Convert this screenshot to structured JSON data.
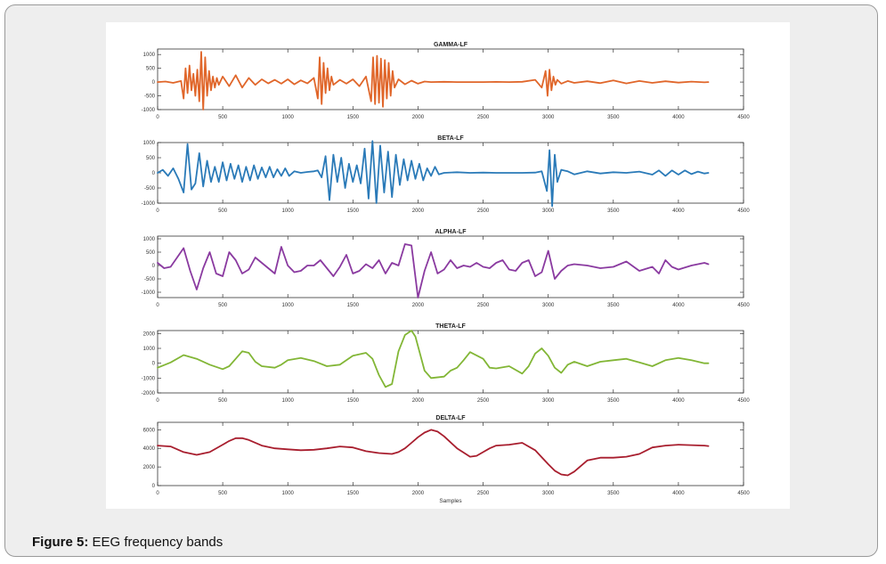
{
  "caption": {
    "label": "Figure 5:",
    "text": "EEG frequency bands"
  },
  "chart_data": [
    {
      "type": "line",
      "title": "GAMMA-LF",
      "xlabel": "",
      "xlim": [
        0,
        4500
      ],
      "ylim": [
        -1000,
        1200
      ],
      "xticks": [
        "0",
        "500",
        "1000",
        "1500",
        "2000",
        "2500",
        "3000",
        "3500",
        "4000",
        "4500"
      ],
      "yticks": [
        "1000",
        "500",
        "0",
        "-500",
        "-1000"
      ],
      "color": "#e0662a",
      "series": [
        {
          "x": [
            0,
            60,
            120,
            180,
            200,
            215,
            230,
            245,
            260,
            275,
            290,
            305,
            320,
            335,
            350,
            365,
            380,
            395,
            410,
            425,
            440,
            455,
            470,
            500,
            550,
            600,
            650,
            700,
            750,
            800,
            850,
            900,
            950,
            1000,
            1050,
            1100,
            1150,
            1200,
            1230,
            1245,
            1260,
            1275,
            1290,
            1305,
            1320,
            1335,
            1350,
            1400,
            1450,
            1500,
            1550,
            1600,
            1640,
            1655,
            1670,
            1685,
            1700,
            1715,
            1730,
            1745,
            1760,
            1775,
            1790,
            1805,
            1820,
            1850,
            1900,
            1950,
            2000,
            2050,
            2100,
            2200,
            2300,
            2400,
            2500,
            2600,
            2700,
            2800,
            2900,
            2950,
            2980,
            2995,
            3010,
            3025,
            3040,
            3055,
            3070,
            3100,
            3150,
            3200,
            3300,
            3400,
            3500,
            3600,
            3700,
            3800,
            3900,
            4000,
            4100,
            4200,
            4230
          ],
          "y": [
            0,
            20,
            -30,
            40,
            -600,
            500,
            -400,
            600,
            -300,
            300,
            -500,
            450,
            -700,
            1100,
            -1000,
            900,
            -500,
            400,
            -300,
            200,
            -200,
            150,
            -100,
            200,
            -150,
            250,
            -200,
            150,
            -100,
            100,
            -50,
            80,
            -60,
            100,
            -80,
            60,
            -50,
            150,
            -600,
            900,
            -800,
            700,
            -400,
            500,
            -300,
            200,
            -100,
            80,
            -60,
            100,
            -150,
            200,
            -700,
            900,
            -800,
            950,
            -750,
            850,
            -900,
            800,
            -600,
            700,
            -500,
            400,
            -200,
            100,
            -80,
            50,
            -60,
            20,
            0,
            10,
            0,
            0,
            0,
            5,
            0,
            10,
            80,
            -200,
            400,
            -500,
            450,
            -300,
            200,
            -100,
            80,
            -60,
            40,
            -30,
            30,
            -40,
            60,
            -50,
            40,
            -30,
            30,
            -20,
            15,
            -10,
            0
          ]
        }
      ]
    },
    {
      "type": "line",
      "title": "BETA-LF",
      "xlabel": "",
      "xlim": [
        0,
        4500
      ],
      "ylim": [
        -1000,
        1000
      ],
      "xticks": [
        "0",
        "500",
        "1000",
        "1500",
        "2000",
        "2500",
        "3000",
        "3500",
        "4000",
        "4500"
      ],
      "yticks": [
        "1000",
        "500",
        "0",
        "-500",
        "-1000"
      ],
      "color": "#2a7ab8",
      "series": [
        {
          "x": [
            0,
            40,
            80,
            120,
            160,
            200,
            230,
            260,
            290,
            320,
            350,
            380,
            410,
            440,
            470,
            500,
            530,
            560,
            590,
            620,
            650,
            680,
            710,
            740,
            770,
            800,
            830,
            860,
            890,
            920,
            950,
            980,
            1010,
            1050,
            1100,
            1150,
            1200,
            1230,
            1260,
            1290,
            1320,
            1350,
            1380,
            1410,
            1440,
            1470,
            1500,
            1530,
            1560,
            1590,
            1620,
            1650,
            1680,
            1710,
            1740,
            1770,
            1800,
            1830,
            1860,
            1890,
            1920,
            1950,
            1980,
            2010,
            2040,
            2070,
            2100,
            2130,
            2160,
            2200,
            2300,
            2400,
            2500,
            2600,
            2700,
            2800,
            2900,
            2950,
            2990,
            3010,
            3030,
            3050,
            3070,
            3100,
            3150,
            3200,
            3300,
            3400,
            3500,
            3600,
            3700,
            3800,
            3850,
            3900,
            3950,
            4000,
            4050,
            4100,
            4150,
            4200,
            4230
          ],
          "y": [
            0,
            100,
            -100,
            150,
            -200,
            -650,
            950,
            -550,
            -350,
            650,
            -450,
            400,
            -300,
            200,
            -300,
            350,
            -250,
            300,
            -200,
            250,
            -300,
            200,
            -250,
            250,
            -200,
            180,
            -150,
            200,
            -150,
            120,
            -100,
            150,
            -100,
            50,
            0,
            30,
            50,
            80,
            -150,
            550,
            -900,
            600,
            -300,
            500,
            -500,
            300,
            -300,
            250,
            -350,
            800,
            -850,
            1050,
            -1000,
            900,
            -650,
            700,
            -800,
            600,
            -400,
            450,
            -250,
            400,
            -200,
            300,
            -250,
            150,
            -100,
            200,
            -50,
            0,
            20,
            0,
            10,
            0,
            0,
            0,
            10,
            50,
            -600,
            750,
            -1100,
            600,
            -300,
            100,
            50,
            -50,
            50,
            -20,
            20,
            0,
            40,
            -60,
            80,
            -100,
            80,
            -60,
            80,
            -40,
            40,
            -20,
            0
          ]
        }
      ]
    },
    {
      "type": "line",
      "title": "ALPHA-LF",
      "xlabel": "",
      "xlim": [
        0,
        4500
      ],
      "ylim": [
        -1200,
        1100
      ],
      "xticks": [
        "0",
        "500",
        "1000",
        "1500",
        "2000",
        "2500",
        "3000",
        "3500",
        "4000",
        "4500"
      ],
      "yticks": [
        "1000",
        "500",
        "0",
        "-500",
        "-1000"
      ],
      "color": "#8a3aa0",
      "series": [
        {
          "x": [
            0,
            50,
            100,
            150,
            200,
            250,
            300,
            350,
            400,
            450,
            500,
            550,
            600,
            650,
            700,
            750,
            800,
            850,
            900,
            950,
            1000,
            1050,
            1100,
            1150,
            1200,
            1250,
            1300,
            1350,
            1400,
            1450,
            1500,
            1550,
            1600,
            1650,
            1700,
            1750,
            1800,
            1850,
            1900,
            1950,
            2000,
            2050,
            2100,
            2150,
            2200,
            2250,
            2300,
            2350,
            2400,
            2450,
            2500,
            2550,
            2600,
            2650,
            2700,
            2750,
            2800,
            2850,
            2900,
            2950,
            3000,
            3050,
            3100,
            3150,
            3200,
            3300,
            3400,
            3500,
            3600,
            3700,
            3800,
            3850,
            3900,
            3950,
            4000,
            4100,
            4200,
            4230
          ],
          "y": [
            100,
            -100,
            -50,
            300,
            650,
            -200,
            -900,
            -100,
            500,
            -300,
            -400,
            500,
            200,
            -300,
            -150,
            300,
            100,
            -100,
            -300,
            700,
            0,
            -250,
            -200,
            0,
            0,
            200,
            -100,
            -400,
            -50,
            400,
            -300,
            -200,
            50,
            -100,
            200,
            -300,
            100,
            0,
            800,
            750,
            -1200,
            -200,
            500,
            -300,
            -150,
            200,
            -100,
            0,
            -50,
            100,
            -50,
            -100,
            100,
            200,
            -150,
            -200,
            100,
            200,
            -400,
            -250,
            550,
            -500,
            -200,
            0,
            50,
            0,
            -100,
            -50,
            150,
            -200,
            -50,
            -300,
            200,
            -50,
            -150,
            0,
            100,
            50
          ]
        }
      ]
    },
    {
      "type": "line",
      "title": "THETA-LF",
      "xlabel": "",
      "xlim": [
        0,
        4500
      ],
      "ylim": [
        -2000,
        2200
      ],
      "xticks": [
        "0",
        "500",
        "1000",
        "1500",
        "2000",
        "2500",
        "3000",
        "3500",
        "4000",
        "4500"
      ],
      "yticks": [
        "2000",
        "1000",
        "0",
        "-1000",
        "-2000"
      ],
      "color": "#82b636",
      "series": [
        {
          "x": [
            0,
            100,
            200,
            300,
            400,
            500,
            550,
            600,
            650,
            700,
            750,
            800,
            900,
            950,
            1000,
            1100,
            1200,
            1300,
            1400,
            1500,
            1600,
            1650,
            1700,
            1750,
            1800,
            1850,
            1900,
            1950,
            1980,
            2050,
            2100,
            2200,
            2250,
            2300,
            2350,
            2400,
            2500,
            2550,
            2600,
            2700,
            2800,
            2850,
            2900,
            2950,
            3000,
            3050,
            3100,
            3150,
            3200,
            3300,
            3400,
            3500,
            3600,
            3700,
            3800,
            3900,
            4000,
            4100,
            4200,
            4230
          ],
          "y": [
            -300,
            50,
            550,
            300,
            -100,
            -400,
            -200,
            300,
            800,
            700,
            100,
            -200,
            -300,
            -100,
            200,
            350,
            150,
            -200,
            -100,
            500,
            700,
            300,
            -800,
            -1600,
            -1400,
            800,
            1900,
            2200,
            1800,
            -500,
            -1000,
            -900,
            -500,
            -300,
            200,
            750,
            300,
            -300,
            -350,
            -200,
            -700,
            -200,
            650,
            1000,
            500,
            -300,
            -650,
            -100,
            100,
            -200,
            100,
            200,
            300,
            50,
            -200,
            200,
            350,
            200,
            0,
            0
          ]
        }
      ]
    },
    {
      "type": "line",
      "title": "DELTA-LF",
      "xlabel": "Samples",
      "xlim": [
        0,
        4500
      ],
      "ylim": [
        0,
        6800
      ],
      "xticks": [
        "0",
        "500",
        "1000",
        "1500",
        "2000",
        "2500",
        "3000",
        "3500",
        "4000",
        "4500"
      ],
      "yticks": [
        "6000",
        "4000",
        "2000",
        "0"
      ],
      "color": "#a81e2e",
      "series": [
        {
          "x": [
            0,
            100,
            200,
            300,
            400,
            500,
            550,
            600,
            650,
            700,
            800,
            900,
            1000,
            1100,
            1200,
            1300,
            1400,
            1500,
            1600,
            1700,
            1800,
            1850,
            1900,
            1950,
            2000,
            2050,
            2100,
            2150,
            2200,
            2300,
            2400,
            2450,
            2500,
            2550,
            2600,
            2700,
            2800,
            2900,
            3000,
            3050,
            3100,
            3150,
            3200,
            3300,
            3400,
            3500,
            3600,
            3700,
            3800,
            3900,
            4000,
            4100,
            4200,
            4230
          ],
          "y": [
            4300,
            4200,
            3600,
            3300,
            3600,
            4400,
            4800,
            5100,
            5100,
            4900,
            4300,
            4000,
            3900,
            3800,
            3850,
            4000,
            4200,
            4100,
            3700,
            3500,
            3400,
            3600,
            4000,
            4600,
            5200,
            5700,
            6000,
            5800,
            5300,
            4000,
            3100,
            3200,
            3600,
            4000,
            4300,
            4400,
            4600,
            3800,
            2300,
            1600,
            1200,
            1100,
            1500,
            2700,
            3000,
            3000,
            3100,
            3400,
            4100,
            4300,
            4400,
            4350,
            4300,
            4250
          ]
        }
      ]
    }
  ]
}
